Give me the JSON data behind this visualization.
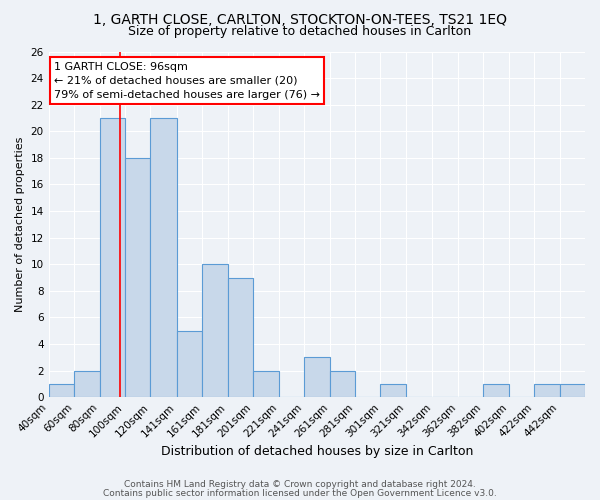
{
  "title1": "1, GARTH CLOSE, CARLTON, STOCKTON-ON-TEES, TS21 1EQ",
  "title2": "Size of property relative to detached houses in Carlton",
  "xlabel": "Distribution of detached houses by size in Carlton",
  "ylabel": "Number of detached properties",
  "bin_labels": [
    "40sqm",
    "60sqm",
    "80sqm",
    "100sqm",
    "120sqm",
    "141sqm",
    "161sqm",
    "181sqm",
    "201sqm",
    "221sqm",
    "241sqm",
    "261sqm",
    "281sqm",
    "301sqm",
    "321sqm",
    "342sqm",
    "362sqm",
    "382sqm",
    "402sqm",
    "422sqm",
    "442sqm"
  ],
  "bin_values": [
    1,
    2,
    21,
    18,
    21,
    5,
    10,
    9,
    2,
    0,
    3,
    2,
    0,
    1,
    0,
    0,
    0,
    1,
    0,
    1,
    1
  ],
  "bar_color": "#c8d8ea",
  "bar_edge_color": "#5b9bd5",
  "red_line_x": 96,
  "bin_edges_sqm": [
    40,
    60,
    80,
    100,
    120,
    141,
    161,
    181,
    201,
    221,
    241,
    261,
    281,
    301,
    321,
    342,
    362,
    382,
    402,
    422,
    442,
    462
  ],
  "annotation_line1": "1 GARTH CLOSE: 96sqm",
  "annotation_line2": "← 21% of detached houses are smaller (20)",
  "annotation_line3": "79% of semi-detached houses are larger (76) →",
  "annotation_box_color": "white",
  "annotation_box_edge_color": "red",
  "ylim": [
    0,
    26
  ],
  "yticks": [
    0,
    2,
    4,
    6,
    8,
    10,
    12,
    14,
    16,
    18,
    20,
    22,
    24,
    26
  ],
  "footer1": "Contains HM Land Registry data © Crown copyright and database right 2024.",
  "footer2": "Contains public sector information licensed under the Open Government Licence v3.0.",
  "bg_color": "#eef2f7",
  "grid_color": "#ffffff",
  "title1_fontsize": 10,
  "title2_fontsize": 9,
  "xlabel_fontsize": 9,
  "ylabel_fontsize": 8,
  "tick_fontsize": 7.5,
  "annot_fontsize": 8,
  "footer_fontsize": 6.5
}
